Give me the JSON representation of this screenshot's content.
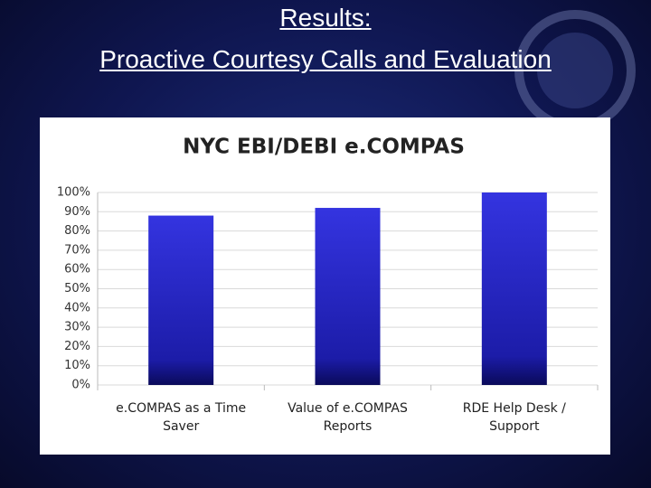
{
  "header": {
    "title_lines": [
      "Results:",
      "Proactive Courtesy Calls and Evaluation"
    ]
  },
  "chart_data": {
    "type": "bar",
    "title": "NYC EBI/DEBI e.COMPAS",
    "categories": [
      "e.COMPAS as a Time Saver",
      "Value of e.COMPAS Reports",
      "RDE Help Desk / Support"
    ],
    "values": [
      88,
      92,
      100
    ],
    "color": "#2b2bd6",
    "ylim": [
      0,
      100
    ],
    "yticks": [
      {
        "value": 0,
        "label": "0%"
      },
      {
        "value": 10,
        "label": "10%"
      },
      {
        "value": 20,
        "label": "20%"
      },
      {
        "value": 30,
        "label": "30%"
      },
      {
        "value": 40,
        "label": "40%"
      },
      {
        "value": 50,
        "label": "50%"
      },
      {
        "value": 60,
        "label": "60%"
      },
      {
        "value": 70,
        "label": "70%"
      },
      {
        "value": 80,
        "label": "80%"
      },
      {
        "value": 90,
        "label": "90%"
      },
      {
        "value": 100,
        "label": "100%"
      }
    ],
    "grid": true
  }
}
